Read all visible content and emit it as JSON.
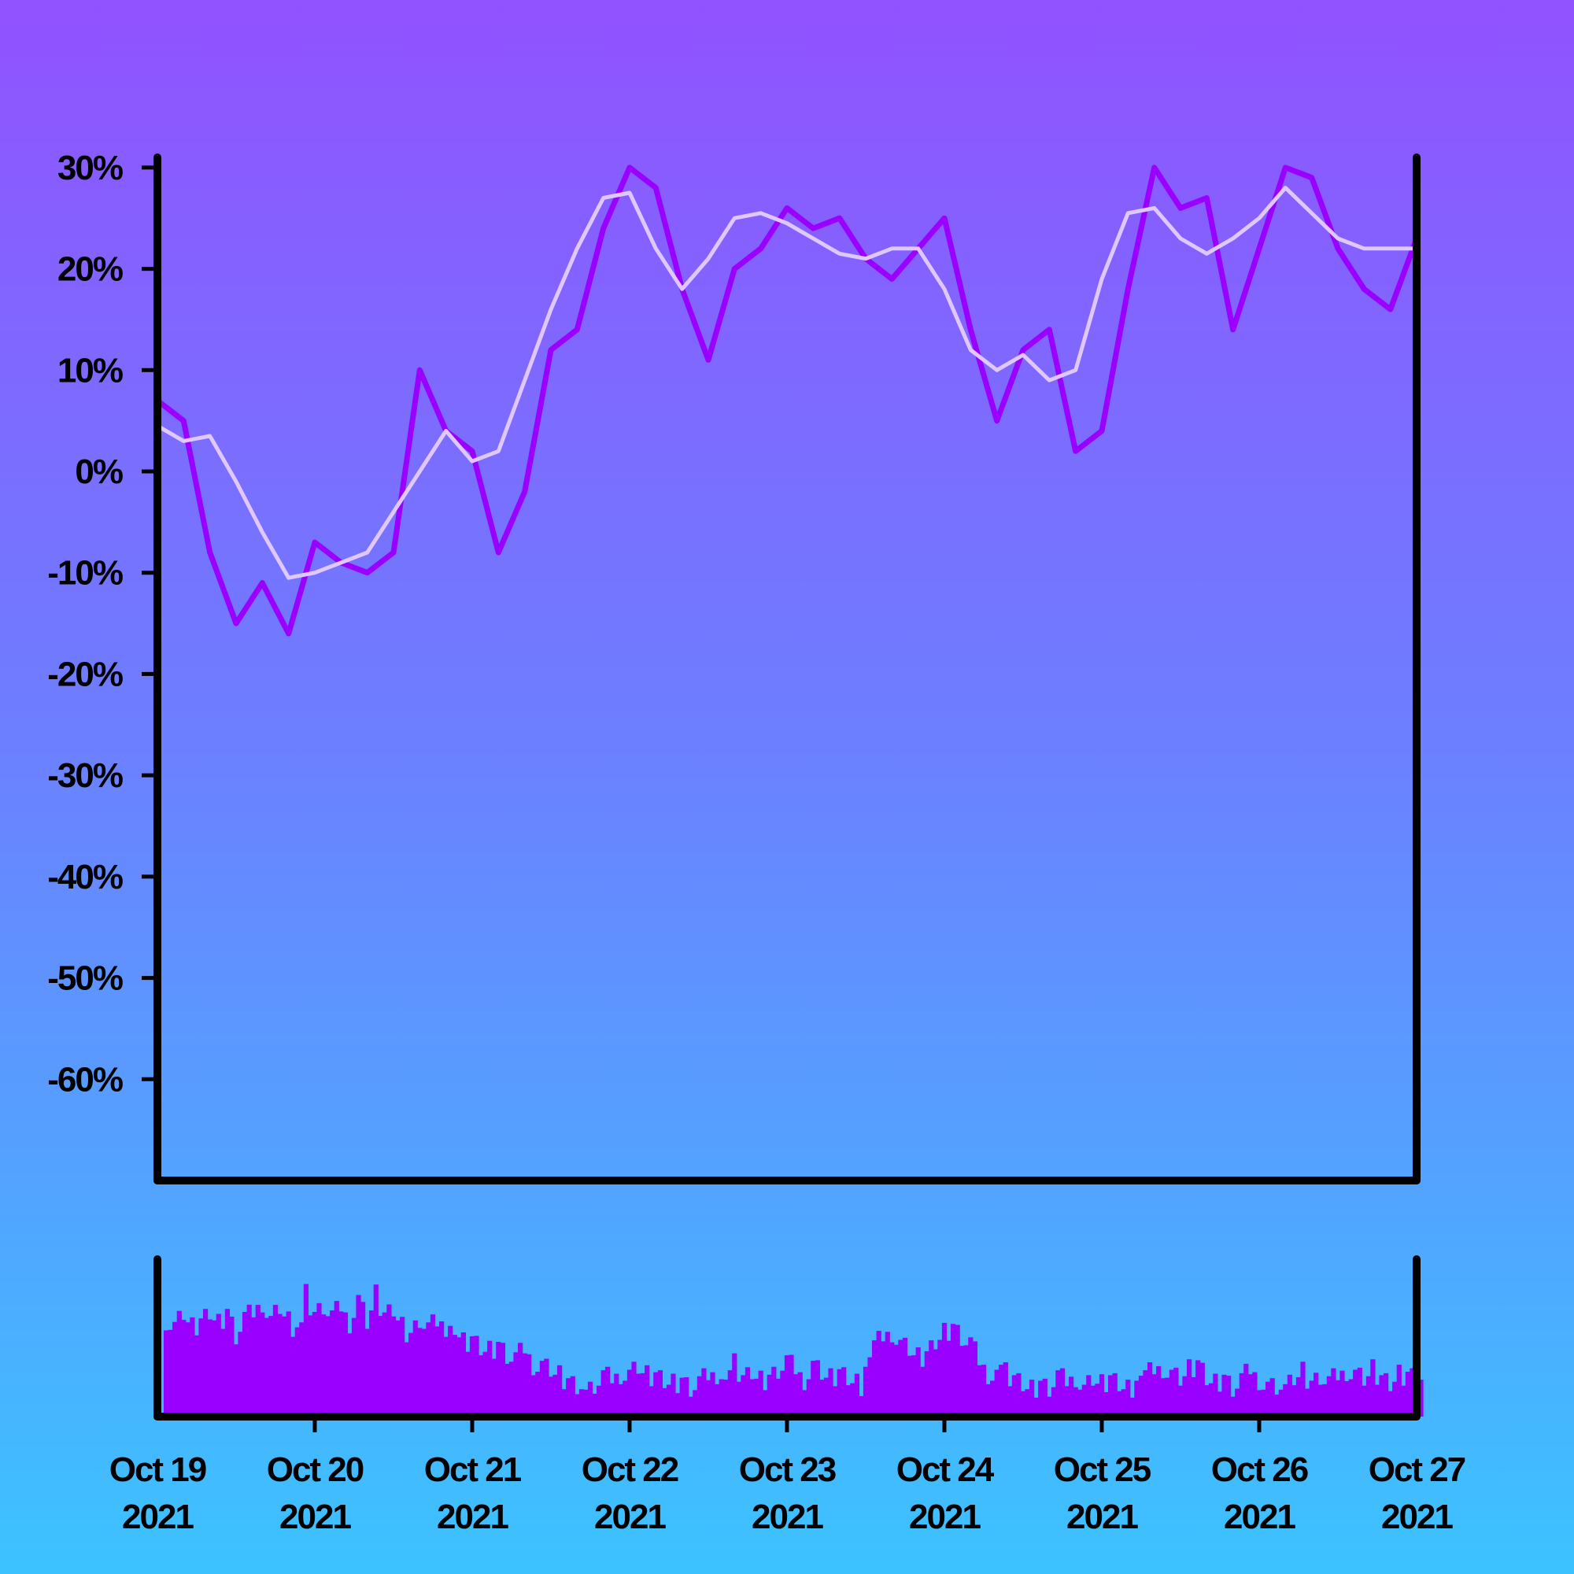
{
  "chart_data": [
    {
      "type": "line",
      "panel": "price",
      "x_start": "2021-10-19",
      "x_end": "2021-10-27",
      "ylim": [
        -70,
        31
      ],
      "y_ticks": [
        30,
        20,
        10,
        0,
        -10,
        -20,
        -30,
        -40,
        -50,
        -60
      ],
      "y_tick_labels": [
        "30%",
        "20%",
        "10%",
        "0%",
        "-10%",
        "-20%",
        "-30%",
        "-40%",
        "-50%",
        "-60%"
      ],
      "grid": false,
      "legend": "none",
      "colors": {
        "price": "#9900ff",
        "average": "#e0c8ff",
        "axis": "#000000"
      },
      "series": [
        {
          "style": "price",
          "x": [
            "2021-10-19T00:00",
            "2021-10-19T04:00",
            "2021-10-19T08:00",
            "2021-10-19T12:00",
            "2021-10-19T16:00",
            "2021-10-19T20:00",
            "2021-10-20T00:00",
            "2021-10-20T04:00",
            "2021-10-20T08:00",
            "2021-10-20T12:00",
            "2021-10-20T16:00",
            "2021-10-20T20:00",
            "2021-10-21T00:00",
            "2021-10-21T04:00",
            "2021-10-21T08:00",
            "2021-10-21T12:00",
            "2021-10-21T16:00",
            "2021-10-21T20:00",
            "2021-10-22T00:00",
            "2021-10-22T04:00",
            "2021-10-22T08:00",
            "2021-10-22T12:00",
            "2021-10-22T16:00",
            "2021-10-22T20:00",
            "2021-10-23T00:00",
            "2021-10-23T04:00",
            "2021-10-23T08:00",
            "2021-10-23T12:00",
            "2021-10-23T16:00",
            "2021-10-23T20:00",
            "2021-10-24T00:00",
            "2021-10-24T04:00",
            "2021-10-24T08:00",
            "2021-10-24T12:00",
            "2021-10-24T16:00",
            "2021-10-24T20:00",
            "2021-10-25T00:00",
            "2021-10-25T04:00",
            "2021-10-25T08:00",
            "2021-10-25T12:00",
            "2021-10-25T16:00",
            "2021-10-25T20:00",
            "2021-10-26T00:00",
            "2021-10-26T04:00",
            "2021-10-26T08:00",
            "2021-10-26T12:00",
            "2021-10-26T16:00",
            "2021-10-26T20:00",
            "2021-10-27T00:00"
          ],
          "values": [
            7,
            5,
            -8,
            -15,
            -11,
            -16,
            -7,
            -9,
            -10,
            -8,
            10,
            4,
            2,
            -8,
            -2,
            12,
            14,
            24,
            30,
            28,
            18,
            11,
            20,
            22,
            26,
            24,
            25,
            21,
            19,
            22,
            25,
            14,
            5,
            12,
            14,
            2,
            4,
            18,
            30,
            26,
            27,
            14,
            22,
            30,
            29,
            22,
            18,
            16,
            23
          ]
        },
        {
          "style": "average",
          "x": [
            "2021-10-19T00:00",
            "2021-10-19T04:00",
            "2021-10-19T08:00",
            "2021-10-19T12:00",
            "2021-10-19T16:00",
            "2021-10-19T20:00",
            "2021-10-20T00:00",
            "2021-10-20T04:00",
            "2021-10-20T08:00",
            "2021-10-20T12:00",
            "2021-10-20T16:00",
            "2021-10-20T20:00",
            "2021-10-21T00:00",
            "2021-10-21T04:00",
            "2021-10-21T08:00",
            "2021-10-21T12:00",
            "2021-10-21T16:00",
            "2021-10-21T20:00",
            "2021-10-22T00:00",
            "2021-10-22T04:00",
            "2021-10-22T08:00",
            "2021-10-22T12:00",
            "2021-10-22T16:00",
            "2021-10-22T20:00",
            "2021-10-23T00:00",
            "2021-10-23T04:00",
            "2021-10-23T08:00",
            "2021-10-23T12:00",
            "2021-10-23T16:00",
            "2021-10-23T20:00",
            "2021-10-24T00:00",
            "2021-10-24T04:00",
            "2021-10-24T08:00",
            "2021-10-24T12:00",
            "2021-10-24T16:00",
            "2021-10-24T20:00",
            "2021-10-25T00:00",
            "2021-10-25T04:00",
            "2021-10-25T08:00",
            "2021-10-25T12:00",
            "2021-10-25T16:00",
            "2021-10-25T20:00",
            "2021-10-26T00:00",
            "2021-10-26T04:00",
            "2021-10-26T08:00",
            "2021-10-26T12:00",
            "2021-10-26T16:00",
            "2021-10-26T20:00",
            "2021-10-27T00:00"
          ],
          "values": [
            4.5,
            3,
            3.5,
            -1,
            -6,
            -10.5,
            -10,
            -9,
            -8,
            -4,
            0,
            4,
            1,
            2,
            9,
            16,
            22,
            27,
            27.5,
            22,
            18,
            21,
            25,
            25.5,
            24.5,
            23,
            21.5,
            21,
            22,
            22,
            18,
            12,
            10,
            11.5,
            9,
            10,
            19,
            25.5,
            26,
            23,
            21.5,
            23,
            25,
            28,
            25.5,
            23,
            22,
            22,
            22
          ]
        }
      ]
    },
    {
      "type": "bar",
      "panel": "volume",
      "x_start": "2021-10-19",
      "x_end": "2021-10-27",
      "levels_per_day": [
        [
          0.66,
          0.6,
          0.68,
          0.58,
          0.64,
          0.7,
          0.62,
          0.72,
          0.55,
          0.65,
          0.68,
          0.78,
          0.64,
          0.72,
          0.62,
          0.58
        ],
        [
          0.82,
          0.7,
          0.75,
          0.66,
          0.72,
          0.64,
          0.78,
          0.62,
          0.8,
          0.68,
          0.72,
          0.6,
          0.56,
          0.66,
          0.58,
          0.62
        ],
        [
          0.5,
          0.58,
          0.48,
          0.52,
          0.46,
          0.44,
          0.5,
          0.42,
          0.38,
          0.44,
          0.36,
          0.34,
          0.3,
          0.26,
          0.24,
          0.2
        ],
        [
          0.18,
          0.22,
          0.26,
          0.24,
          0.3,
          0.28,
          0.32,
          0.26,
          0.28,
          0.24,
          0.22,
          0.26,
          0.2,
          0.22,
          0.26,
          0.3
        ],
        [
          0.28,
          0.34,
          0.26,
          0.3,
          0.24,
          0.28,
          0.32,
          0.36,
          0.3,
          0.26,
          0.34,
          0.28,
          0.24,
          0.3,
          0.26,
          0.22
        ],
        [
          0.4,
          0.46,
          0.52,
          0.58,
          0.48,
          0.44,
          0.38,
          0.42,
          0.5,
          0.56,
          0.62,
          0.54,
          0.48,
          0.36,
          0.3,
          0.28
        ],
        [
          0.28,
          0.26,
          0.22,
          0.18,
          0.24,
          0.2,
          0.26,
          0.22,
          0.28,
          0.18,
          0.24,
          0.2,
          0.26,
          0.22,
          0.18,
          0.24
        ],
        [
          0.26,
          0.3,
          0.34,
          0.28,
          0.24,
          0.3,
          0.36,
          0.26,
          0.22,
          0.28,
          0.2,
          0.24,
          0.3,
          0.26,
          0.2,
          0.18
        ],
        [
          0.2,
          0.26,
          0.3,
          0.24,
          0.28,
          0.22,
          0.26,
          0.32,
          0.28,
          0.24,
          0.3,
          0.26,
          0.22,
          0.28,
          0.3,
          0.28
        ]
      ],
      "colors": {
        "bar": "#9900ff"
      }
    }
  ],
  "x_tick_labels": [
    {
      "line1": "Oct 19",
      "line2": "2021"
    },
    {
      "line1": "Oct 20",
      "line2": "2021"
    },
    {
      "line1": "Oct 21",
      "line2": "2021"
    },
    {
      "line1": "Oct 22",
      "line2": "2021"
    },
    {
      "line1": "Oct 23",
      "line2": "2021"
    },
    {
      "line1": "Oct 24",
      "line2": "2021"
    },
    {
      "line1": "Oct 25",
      "line2": "2021"
    },
    {
      "line1": "Oct 26",
      "line2": "2021"
    },
    {
      "line1": "Oct 27",
      "line2": "2021"
    }
  ]
}
